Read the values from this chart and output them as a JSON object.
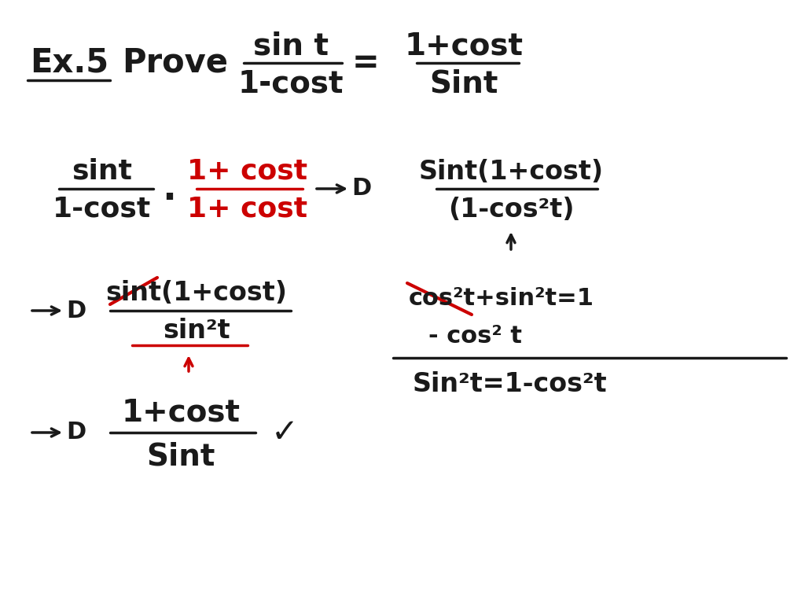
{
  "bg_color": "#ffffff",
  "black": "#1a1a1a",
  "red": "#cc0000",
  "figsize": [
    10.24,
    7.68
  ],
  "dpi": 100,
  "xlim": [
    0,
    1024
  ],
  "ylim": [
    0,
    768
  ]
}
